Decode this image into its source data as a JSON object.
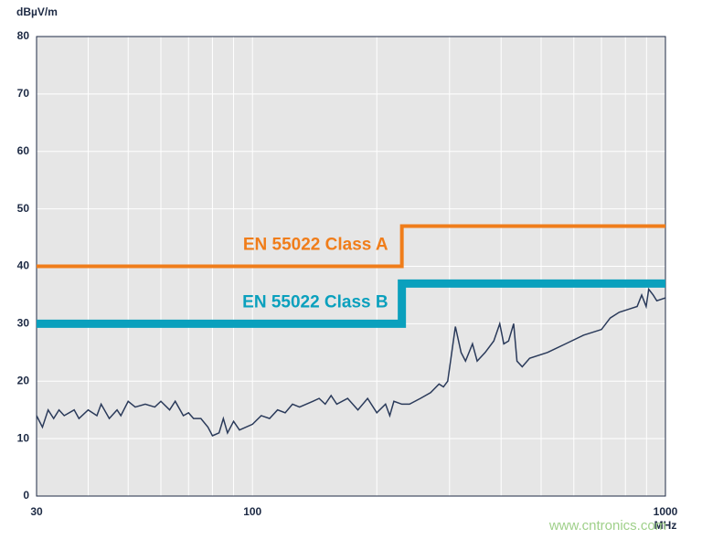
{
  "chart_data": {
    "type": "line",
    "x_label": "MHz",
    "y_label": "dBµV/m",
    "watermark": "www.cntronics.com",
    "log_x": true,
    "grid": true,
    "background": "#e6e6e6",
    "xlim": [
      30,
      1000
    ],
    "ylim": [
      0,
      80
    ],
    "xticks": [
      30,
      100,
      1000
    ],
    "x_minor_grid": [
      40,
      50,
      60,
      70,
      80,
      90,
      200,
      300,
      400,
      500,
      600,
      700,
      800,
      900
    ],
    "yticks": [
      0,
      10,
      20,
      30,
      40,
      50,
      60,
      70,
      80
    ],
    "series": [
      {
        "name": "EN 55022 Class A",
        "color": "#f07d1a",
        "width": 4,
        "x": [
          30,
          230,
          230,
          1000
        ],
        "values": [
          40,
          40,
          47,
          47
        ]
      },
      {
        "name": "EN 55022 Class B",
        "color": "#0aa0bd",
        "width": 9,
        "x": [
          30,
          230,
          230,
          1000
        ],
        "values": [
          30,
          30,
          37,
          37
        ]
      },
      {
        "color": "#2a3a5a",
        "width": 1.5,
        "x": [
          30,
          31,
          32,
          33,
          34,
          35,
          37,
          38,
          40,
          42,
          43,
          45,
          47,
          48,
          50,
          52,
          55,
          58,
          60,
          63,
          65,
          68,
          70,
          72,
          75,
          78,
          80,
          83,
          85,
          87,
          90,
          93,
          100,
          105,
          110,
          115,
          120,
          125,
          130,
          140,
          145,
          150,
          155,
          160,
          170,
          180,
          190,
          200,
          210,
          215,
          220,
          230,
          240,
          255,
          270,
          283,
          290,
          297,
          310,
          320,
          328,
          341,
          350,
          366,
          384,
          397,
          406,
          417,
          429,
          437,
          450,
          469,
          518,
          573,
          633,
          700,
          735,
          773,
          812,
          854,
          876,
          898,
          911,
          934,
          953,
          1000
        ],
        "values": [
          14,
          12,
          15,
          13.5,
          15,
          14,
          15,
          13.5,
          15,
          14,
          16,
          13.5,
          15,
          14,
          16.5,
          15.5,
          16,
          15.5,
          16.5,
          15,
          16.5,
          14,
          14.5,
          13.5,
          13.5,
          12,
          10.5,
          11,
          13.5,
          11,
          13,
          11.5,
          12.5,
          14,
          13.5,
          15,
          14.5,
          16,
          15.5,
          16.5,
          17,
          16,
          17.5,
          16,
          17,
          15,
          17,
          14.5,
          16,
          14,
          16.5,
          16,
          16,
          17,
          18,
          19.5,
          19,
          20,
          29.5,
          25,
          23.5,
          26.5,
          23.5,
          25,
          27,
          30,
          26.5,
          27,
          30,
          23.5,
          22.5,
          24,
          25,
          26.5,
          28,
          29,
          31,
          32,
          32.5,
          33,
          35,
          33,
          36,
          35,
          34,
          34.5
        ]
      }
    ]
  }
}
